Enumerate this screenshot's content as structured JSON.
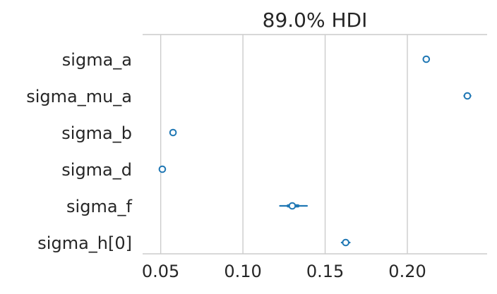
{
  "chart_data": {
    "type": "forest",
    "title": "89.0% HDI",
    "x_ticks": [
      "0.05",
      "0.10",
      "0.15",
      "0.20"
    ],
    "x_tick_values": [
      0.05,
      0.1,
      0.15,
      0.2
    ],
    "xlim": [
      0.039,
      0.2485
    ],
    "grid": "vertical",
    "marker_color": "#1f77b4",
    "series": [
      {
        "label": "sigma_a",
        "median": 0.2115,
        "hdi_low": 0.2108,
        "hdi_high": 0.2122,
        "iqr_low": 0.2112,
        "iqr_high": 0.2118
      },
      {
        "label": "sigma_mu_a",
        "median": 0.2365,
        "hdi_low": 0.2345,
        "hdi_high": 0.2385,
        "iqr_low": 0.2355,
        "iqr_high": 0.2372
      },
      {
        "label": "sigma_b",
        "median": 0.0575,
        "hdi_low": 0.057,
        "hdi_high": 0.058,
        "iqr_low": 0.0573,
        "iqr_high": 0.0577
      },
      {
        "label": "sigma_d",
        "median": 0.051,
        "hdi_low": 0.0506,
        "hdi_high": 0.0514,
        "iqr_low": 0.0508,
        "iqr_high": 0.0512
      },
      {
        "label": "sigma_f",
        "median": 0.13,
        "hdi_low": 0.1225,
        "hdi_high": 0.139,
        "iqr_low": 0.1275,
        "iqr_high": 0.1335
      },
      {
        "label": "sigma_h[0]",
        "median": 0.1625,
        "hdi_low": 0.16,
        "hdi_high": 0.165,
        "iqr_low": 0.1612,
        "iqr_high": 0.1638
      }
    ]
  }
}
